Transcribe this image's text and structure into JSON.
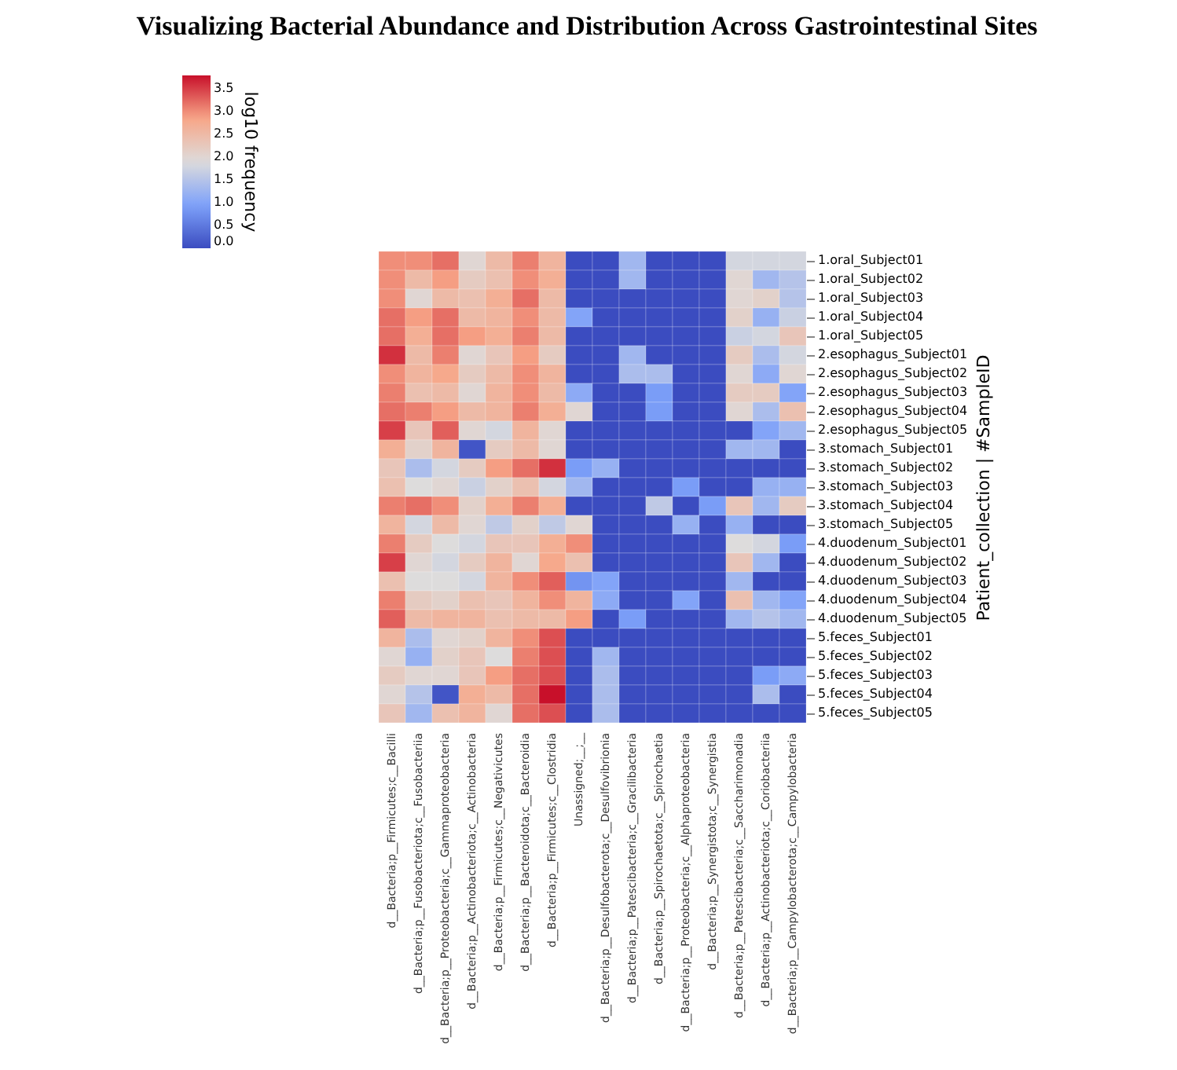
{
  "chart_data": {
    "type": "heatmap",
    "title": "Visualizing Bacterial Abundance and Distribution Across Gastrointestinal Sites",
    "ylabel": "Patient_collection | #SampleID",
    "clabel": "log10 frequency",
    "categories": [
      "d__Bacteria;p__Firmicutes;c__Bacilli",
      "d__Bacteria;p__Fusobacteriota;c__Fusobacteriia",
      "d__Bacteria;p__Proteobacteria;c__Gammaproteobacteria",
      "d__Bacteria;p__Actinobacteriota;c__Actinobacteria",
      "d__Bacteria;p__Firmicutes;c__Negativicutes",
      "d__Bacteria;p__Bacteroidota;c__Bacteroidia",
      "d__Bacteria;p__Firmicutes;c__Clostridia",
      "Unassigned;__;__",
      "d__Bacteria;p__Desulfobacterota;c__Desulfovibrionia",
      "d__Bacteria;p__Patescibacteria;c__Gracilibacteria",
      "d__Bacteria;p__Spirochaetota;c__Spirochaetia",
      "d__Bacteria;p__Proteobacteria;c__Alphaproteobacteria",
      "d__Bacteria;p__Synergistota;c__Synergistia",
      "d__Bacteria;p__Patescibacteria;c__Saccharimonadia",
      "d__Bacteria;p__Actinobacteriota;c__Coriobacteriia",
      "d__Bacteria;p__Campylobacterota;c__Campylobacteria"
    ],
    "y_categories": [
      "1.oral_Subject01",
      "1.oral_Subject02",
      "1.oral_Subject03",
      "1.oral_Subject04",
      "1.oral_Subject05",
      "2.esophagus_Subject01",
      "2.esophagus_Subject02",
      "2.esophagus_Subject03",
      "2.esophagus_Subject04",
      "2.esophagus_Subject05",
      "3.stomach_Subject01",
      "3.stomach_Subject02",
      "3.stomach_Subject03",
      "3.stomach_Subject04",
      "3.stomach_Subject05",
      "4.duodenum_Subject01",
      "4.duodenum_Subject02",
      "4.duodenum_Subject03",
      "4.duodenum_Subject04",
      "4.duodenum_Subject05",
      "5.feces_Subject01",
      "5.feces_Subject02",
      "5.feces_Subject03",
      "5.feces_Subject04",
      "5.feces_Subject05"
    ],
    "cells": [
      [
        3.0,
        3.0,
        3.2,
        2.0,
        2.5,
        3.1,
        2.6,
        0,
        0,
        1.3,
        0,
        0,
        0,
        1.8,
        1.8,
        1.8
      ],
      [
        3.0,
        2.5,
        2.9,
        2.2,
        2.4,
        3.0,
        2.7,
        0,
        0,
        1.3,
        0,
        0,
        0,
        2.0,
        1.3,
        1.5
      ],
      [
        3.0,
        2.0,
        2.5,
        2.4,
        2.7,
        3.2,
        2.5,
        0,
        0,
        0,
        0,
        0,
        0,
        2.0,
        2.1,
        1.5
      ],
      [
        3.2,
        2.9,
        3.2,
        2.5,
        2.6,
        3.0,
        2.5,
        1.0,
        0,
        0,
        0,
        0,
        0,
        2.1,
        1.2,
        1.7
      ],
      [
        3.2,
        2.7,
        3.2,
        2.9,
        2.7,
        3.1,
        2.5,
        0,
        0,
        0,
        0,
        0,
        0,
        1.7,
        1.8,
        2.3
      ],
      [
        3.6,
        2.5,
        3.1,
        2.0,
        2.3,
        2.9,
        2.2,
        0,
        0,
        1.3,
        0,
        0,
        0,
        2.2,
        1.4,
        1.8
      ],
      [
        3.0,
        2.6,
        2.8,
        2.2,
        2.5,
        3.0,
        2.6,
        0,
        0,
        1.4,
        1.4,
        0,
        0,
        2.0,
        1.1,
        2.0
      ],
      [
        3.1,
        2.4,
        2.5,
        2.0,
        2.6,
        3.0,
        2.5,
        1.1,
        0,
        0,
        0.9,
        0,
        0,
        2.2,
        2.2,
        1.0
      ],
      [
        3.2,
        3.1,
        2.9,
        2.5,
        2.6,
        3.1,
        2.7,
        2.0,
        0,
        0,
        0.9,
        0,
        0,
        2.0,
        1.4,
        2.4
      ],
      [
        3.5,
        2.3,
        3.3,
        2.0,
        1.8,
        2.6,
        2.0,
        0,
        0,
        0,
        0,
        0,
        0,
        0,
        1.0,
        1.3
      ],
      [
        2.7,
        2.1,
        2.6,
        0.1,
        2.2,
        2.5,
        2.0,
        0,
        0,
        0,
        0,
        0,
        0,
        1.3,
        1.3,
        0
      ],
      [
        2.3,
        1.4,
        1.8,
        2.2,
        2.9,
        3.2,
        3.6,
        0.9,
        1.2,
        0,
        0,
        0,
        0,
        0,
        0,
        0
      ],
      [
        2.4,
        1.9,
        2.0,
        1.7,
        2.1,
        2.4,
        1.8,
        1.3,
        0,
        0,
        0,
        0.9,
        0,
        0,
        1.2,
        1.2
      ],
      [
        3.1,
        3.2,
        3.0,
        2.1,
        2.7,
        3.1,
        2.7,
        0,
        0,
        0,
        1.6,
        0,
        0.9,
        2.3,
        1.3,
        2.2
      ],
      [
        2.6,
        1.8,
        2.5,
        2.0,
        1.6,
        2.1,
        1.6,
        2.0,
        0,
        0,
        0,
        1.2,
        0,
        1.2,
        0,
        0
      ],
      [
        3.1,
        2.2,
        1.9,
        1.8,
        2.3,
        2.3,
        2.7,
        3.0,
        0,
        0,
        0,
        0,
        0,
        1.9,
        1.8,
        0.9
      ],
      [
        3.5,
        2.0,
        1.8,
        2.2,
        2.6,
        2.0,
        2.8,
        2.4,
        0,
        0,
        0,
        0,
        0,
        2.3,
        1.3,
        0
      ],
      [
        2.4,
        1.9,
        1.9,
        1.8,
        2.6,
        3.0,
        3.3,
        0.8,
        1.0,
        0,
        0,
        0,
        0,
        1.3,
        0,
        0
      ],
      [
        3.1,
        2.2,
        2.1,
        2.4,
        2.3,
        2.6,
        3.0,
        2.6,
        1.1,
        0,
        0,
        1.0,
        0,
        2.4,
        1.3,
        1.0
      ],
      [
        3.3,
        2.5,
        2.6,
        2.6,
        2.4,
        2.5,
        2.5,
        2.9,
        0,
        0.9,
        0,
        0,
        0,
        1.3,
        1.5,
        1.3
      ],
      [
        2.6,
        1.4,
        2.0,
        2.1,
        2.6,
        3.0,
        3.4,
        0,
        0,
        0,
        0,
        0,
        0,
        0,
        0,
        0
      ],
      [
        2.0,
        1.2,
        2.1,
        2.3,
        1.9,
        3.1,
        3.4,
        0,
        1.3,
        0,
        0,
        0,
        0,
        0,
        0,
        0
      ],
      [
        2.2,
        2.0,
        2.0,
        2.3,
        2.9,
        3.2,
        3.4,
        0,
        1.4,
        0,
        0,
        0,
        0,
        0,
        0.9,
        1.1
      ],
      [
        2.0,
        1.5,
        0.1,
        2.7,
        2.5,
        3.2,
        3.8,
        0,
        1.4,
        0,
        0,
        0,
        0,
        0,
        1.4,
        0
      ],
      [
        2.3,
        1.3,
        2.4,
        2.6,
        2.0,
        3.2,
        3.4,
        0,
        1.4,
        0,
        0,
        0,
        0,
        0,
        0,
        0
      ]
    ],
    "clim": [
      0,
      3.8
    ],
    "cticks": [
      {
        "value": 0,
        "label": "0.0"
      },
      {
        "value": 0.5,
        "label": "0.5"
      },
      {
        "value": 1,
        "label": "1.0"
      },
      {
        "value": 1.5,
        "label": "1.5"
      },
      {
        "value": 2,
        "label": "2.0"
      },
      {
        "value": 2.5,
        "label": "2.5"
      },
      {
        "value": 3,
        "label": "3.0"
      },
      {
        "value": 3.5,
        "label": "3.5"
      }
    ]
  }
}
